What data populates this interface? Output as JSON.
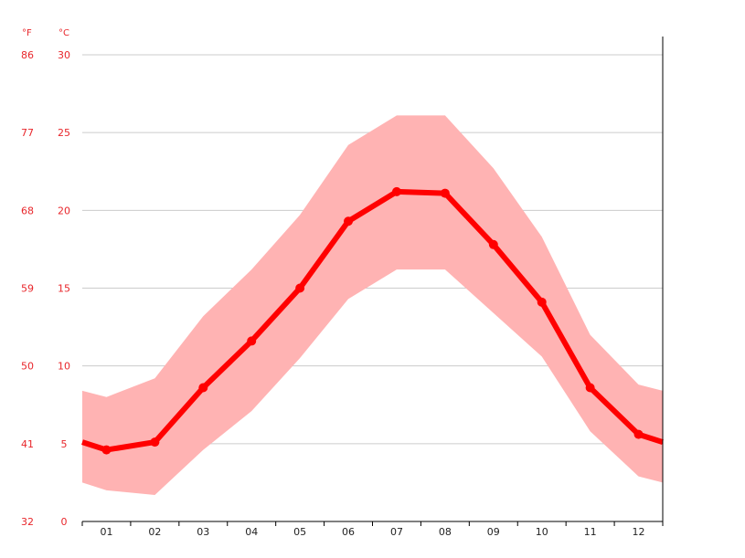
{
  "chart_data": {
    "type": "line",
    "title": "",
    "xlabel": "",
    "ylabel": "",
    "categories": [
      "01",
      "02",
      "03",
      "04",
      "05",
      "06",
      "07",
      "08",
      "09",
      "10",
      "11",
      "12"
    ],
    "series": [
      {
        "values": [
          4.6,
          5.1,
          8.6,
          11.6,
          15.0,
          19.3,
          21.2,
          21.1,
          17.8,
          14.1,
          8.6,
          5.6
        ]
      }
    ],
    "band_min": [
      2.0,
      1.7,
      4.6,
      7.1,
      10.5,
      14.3,
      16.2,
      16.2,
      13.4,
      10.6,
      5.8,
      2.9
    ],
    "band_max": [
      8.0,
      9.2,
      13.2,
      16.2,
      19.7,
      24.2,
      26.1,
      26.1,
      22.7,
      18.3,
      12.0,
      8.8
    ],
    "edge_start": {
      "value": 5.1,
      "min": 2.5,
      "max": 8.4
    },
    "edge_end": {
      "value": 5.1,
      "min": 2.5,
      "max": 8.4
    },
    "ylim": [
      0,
      30
    ],
    "celsius_ticks": [
      "0",
      "5",
      "10",
      "15",
      "20",
      "25",
      "30"
    ],
    "fahrenheit_ticks": [
      "32",
      "41",
      "50",
      "59",
      "68",
      "77",
      "86"
    ],
    "unit_f": "°F",
    "unit_c": "°C",
    "grid": true,
    "colors": {
      "line": "#ff0000",
      "band": "#ffb3b3",
      "axis_text": "#e8262b",
      "grid": "#cccccc"
    }
  }
}
